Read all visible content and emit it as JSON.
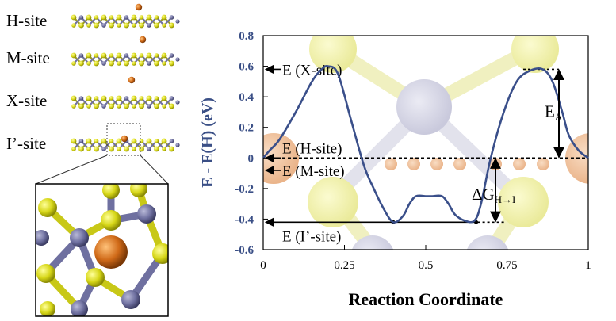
{
  "site_panel": {
    "labels": [
      "H-site",
      "M-site",
      "X-site",
      "I’-site"
    ]
  },
  "chart_data": {
    "type": "line",
    "xlabel": "Reaction Coordinate",
    "ylabel": "E - E(H) (eV)",
    "xlim": [
      0,
      1
    ],
    "ylim": [
      -0.6,
      0.8
    ],
    "xticks": [
      {
        "value": 0,
        "label": "0"
      },
      {
        "value": 0.25,
        "label": "0.25"
      },
      {
        "value": 0.5,
        "label": "0.5"
      },
      {
        "value": 0.75,
        "label": "0.75"
      },
      {
        "value": 1,
        "label": "1"
      }
    ],
    "yticks": [
      {
        "value": 0.8,
        "label": "0.8"
      },
      {
        "value": 0.6,
        "label": "0.6"
      },
      {
        "value": 0.4,
        "label": "0.4"
      },
      {
        "value": 0.2,
        "label": "0.2"
      },
      {
        "value": 0,
        "label": "0"
      },
      {
        "value": -0.2,
        "label": "-0.2"
      },
      {
        "value": -0.4,
        "label": "-0.4"
      },
      {
        "value": -0.6,
        "label": "-0.6"
      }
    ],
    "grid": false,
    "series": [
      {
        "color": "#3a4f8a",
        "x": [
          0,
          0.02,
          0.05,
          0.1,
          0.15,
          0.18,
          0.2,
          0.23,
          0.27,
          0.31,
          0.34,
          0.37,
          0.4,
          0.43,
          0.45,
          0.47,
          0.5,
          0.52,
          0.55,
          0.57,
          0.59,
          0.62,
          0.65,
          0.67,
          0.7,
          0.74,
          0.78,
          0.82,
          0.86,
          0.89,
          0.92,
          0.94,
          0.97,
          1.0
        ],
        "y": [
          0,
          0.05,
          0.12,
          0.3,
          0.5,
          0.58,
          0.6,
          0.55,
          0.25,
          -0.05,
          -0.2,
          -0.33,
          -0.42,
          -0.38,
          -0.3,
          -0.25,
          -0.25,
          -0.25,
          -0.25,
          -0.3,
          -0.37,
          -0.41,
          -0.41,
          -0.3,
          0.0,
          0.3,
          0.5,
          0.57,
          0.58,
          0.5,
          0.3,
          0.15,
          0.05,
          0.0
        ]
      }
    ],
    "reference_levels": [
      {
        "label": "E (X-site)",
        "value": 0.58
      },
      {
        "label": "E (H-site)",
        "value": 0.0
      },
      {
        "label": "E (M-site)",
        "value": -0.05
      },
      {
        "label": "E (I’-site)",
        "value": -0.42
      }
    ],
    "annotations": {
      "activation": {
        "label": "E",
        "subscript": "A",
        "x": 0.9,
        "y_low": 0.0,
        "y_high": 0.58
      },
      "delta_g": {
        "label": "ΔG",
        "subscript": "H→I",
        "x": 0.7,
        "y_low": -0.42,
        "y_high": 0.0
      }
    },
    "colors": {
      "curve": "#3a4f8a",
      "axis_labels": "#3a4f86",
      "sulfur": "#d6d617",
      "metal": "#6f70a0",
      "hydrogen": "#d06a18"
    }
  }
}
